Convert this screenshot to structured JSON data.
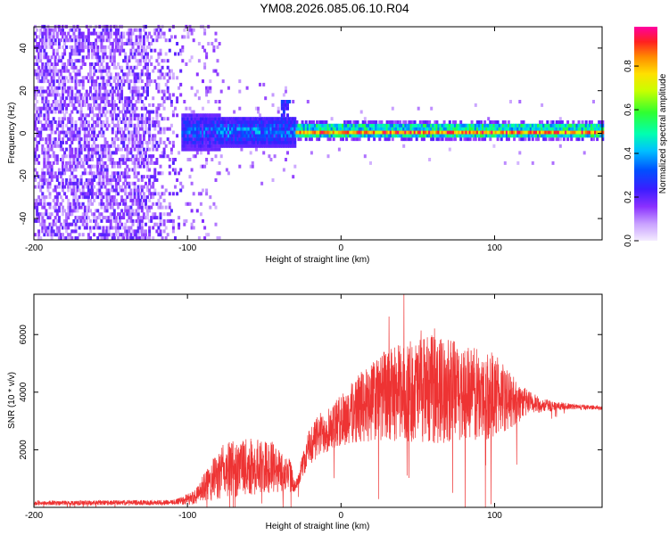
{
  "title": "YM08.2026.085.06.10.R04",
  "colors": {
    "signal": "#ee3333",
    "heat_low": "#7a20ff",
    "heat_mid": "#00d8ff",
    "heat_high": "#ff3030"
  },
  "chart_data": [
    {
      "type": "heatmap",
      "xlabel": "Height of straight line (km)",
      "ylabel": "Frequency (Hz)",
      "xlim": [
        -200,
        170
      ],
      "ylim": [
        -50,
        50
      ],
      "x_ticks": [
        -200,
        -100,
        0,
        100
      ],
      "y_ticks": [
        -40,
        -20,
        0,
        20,
        40
      ],
      "colorbar": {
        "label": "Normalized spectral amplitude",
        "range": [
          0,
          0.98
        ],
        "ticks": [
          0.0,
          0.2,
          0.4,
          0.6,
          0.8
        ]
      },
      "description_series": [
        {
          "x_range": [
            -200,
            -105
          ],
          "content": "broadband scattered noise, low amplitude"
        },
        {
          "x_range": [
            -105,
            -30
          ],
          "center_hz": 0,
          "spread_hz": 8,
          "amplitude": 0.45
        },
        {
          "x_range": [
            -30,
            170
          ],
          "center_hz": 0,
          "spread_hz": 3,
          "amplitude": 0.9
        }
      ]
    },
    {
      "type": "line",
      "xlabel": "Height of straight line (km)",
      "ylabel": "SNR (10 * v/v)",
      "xlim": [
        -200,
        170
      ],
      "ylim": [
        0,
        7400
      ],
      "x_ticks": [
        -200,
        -100,
        0,
        100
      ],
      "y_ticks": [
        2000,
        4000,
        6000
      ],
      "envelope": {
        "x": [
          -200,
          -110,
          -95,
          -85,
          -75,
          -60,
          -45,
          -33,
          -30,
          -20,
          -10,
          0,
          10,
          20,
          30,
          40,
          50,
          60,
          70,
          80,
          90,
          100,
          110,
          120,
          130,
          140,
          150,
          160,
          170
        ],
        "base": [
          150,
          170,
          350,
          900,
          1300,
          1400,
          1400,
          1100,
          700,
          2200,
          2700,
          3000,
          3400,
          3700,
          3900,
          4000,
          4050,
          4100,
          4050,
          4000,
          3900,
          3900,
          3700,
          3650,
          3550,
          3520,
          3500,
          3480,
          3450
        ],
        "noise": [
          80,
          90,
          250,
          700,
          1000,
          1000,
          900,
          600,
          150,
          700,
          800,
          900,
          1200,
          1400,
          1600,
          1700,
          1800,
          1900,
          1800,
          1700,
          1600,
          1500,
          1000,
          500,
          250,
          150,
          100,
          80,
          70
        ]
      }
    }
  ]
}
